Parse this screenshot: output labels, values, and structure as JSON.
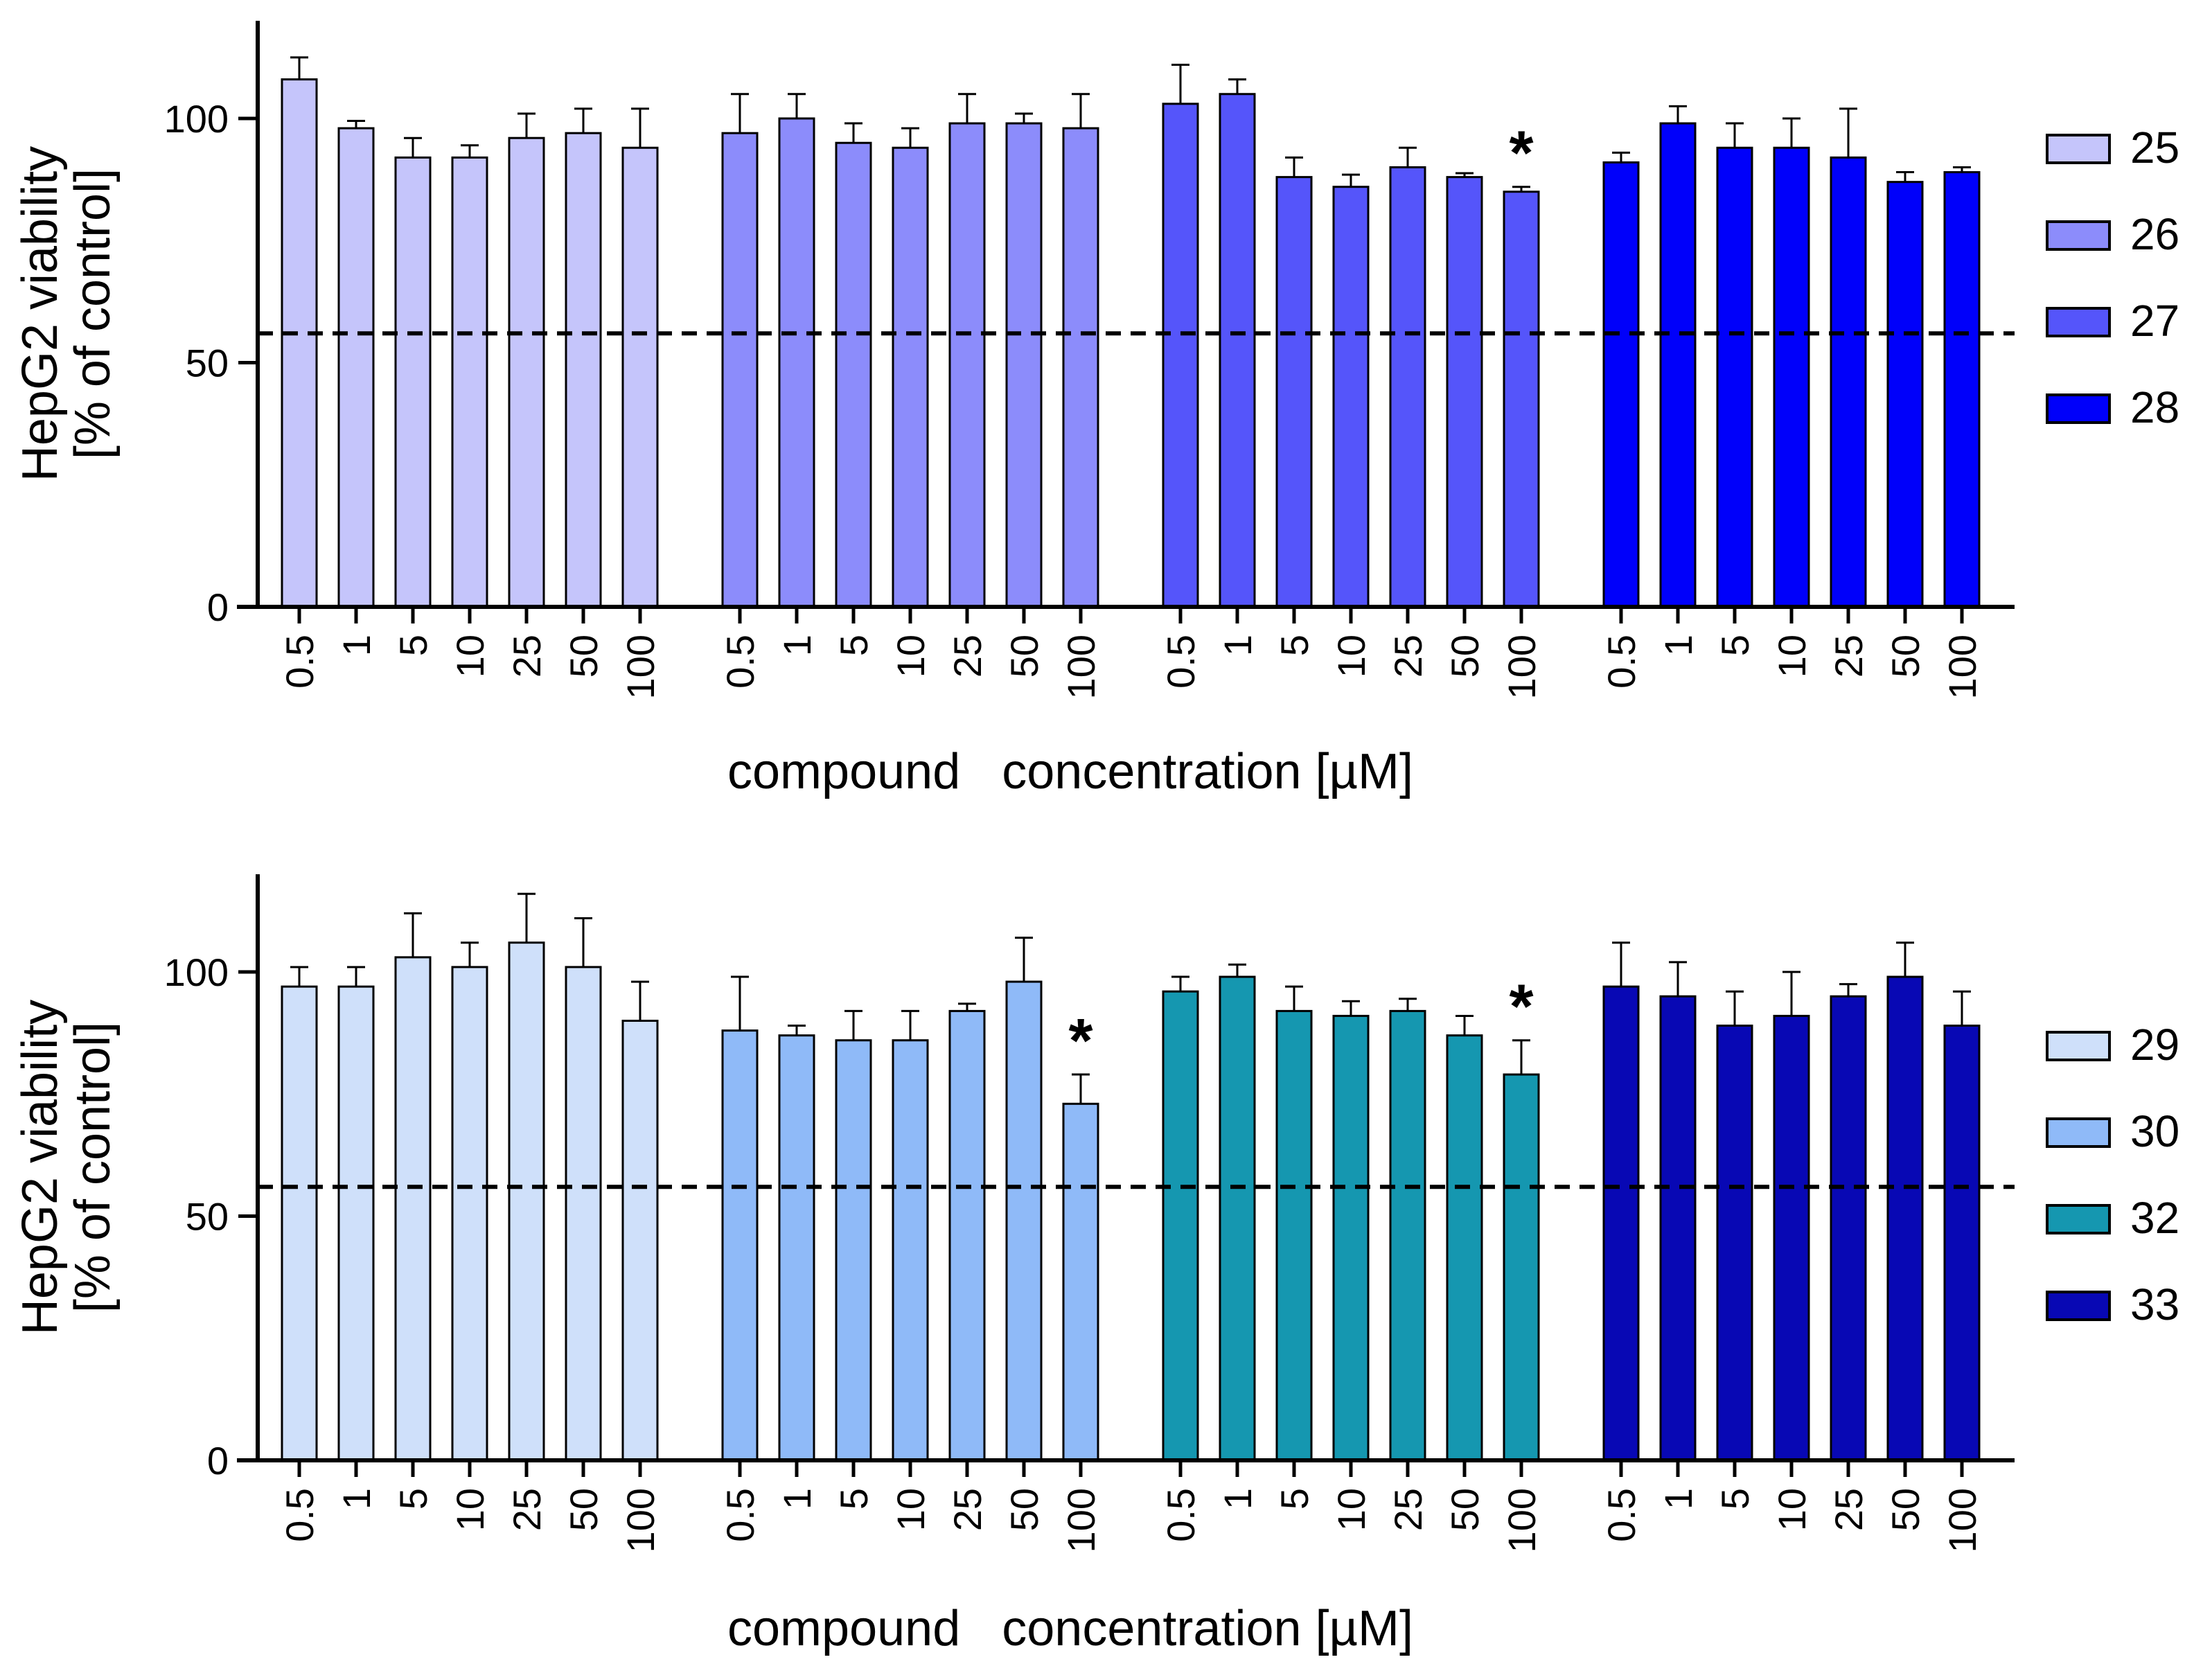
{
  "chart_data": [
    {
      "type": "bar",
      "ylabel": "HepG2 viability",
      "ylabel2": "[% of control]",
      "xlabel": "compound   concentration [µM]",
      "ylim": [
        0,
        120
      ],
      "yticks": [
        0,
        50,
        100
      ],
      "reference_line": 56,
      "categories": [
        "0.5",
        "1",
        "5",
        "10",
        "25",
        "50",
        "100"
      ],
      "series": [
        {
          "name": "25",
          "color": "#c5c5fb",
          "values": [
            108,
            98,
            92,
            92,
            96,
            97,
            94
          ],
          "errors": [
            4.5,
            1.5,
            4,
            2.5,
            5,
            5,
            8
          ],
          "sig": []
        },
        {
          "name": "26",
          "color": "#8c8cfb",
          "values": [
            97,
            100,
            95,
            94,
            99,
            99,
            98
          ],
          "errors": [
            8,
            5,
            4,
            4,
            6,
            2,
            7
          ],
          "sig": []
        },
        {
          "name": "27",
          "color": "#5555fa",
          "values": [
            103,
            105,
            88,
            86,
            90,
            88,
            85
          ],
          "errors": [
            8,
            3,
            4,
            2.5,
            4,
            0.8,
            1
          ],
          "sig": [
            "100"
          ]
        },
        {
          "name": "28",
          "color": "#0000fa",
          "values": [
            91,
            99,
            94,
            94,
            92,
            87,
            89
          ],
          "errors": [
            2,
            3.5,
            5,
            6,
            10,
            2,
            1
          ]
        }
      ]
    },
    {
      "type": "bar",
      "ylabel": "HepG2 viability",
      "ylabel2": "[% of control]",
      "xlabel": "compound   concentration [µM]",
      "ylim": [
        0,
        120
      ],
      "yticks": [
        0,
        50,
        100
      ],
      "reference_line": 56,
      "categories": [
        "0.5",
        "1",
        "5",
        "10",
        "25",
        "50",
        "100"
      ],
      "series": [
        {
          "name": "29",
          "color": "#cfe0fa",
          "values": [
            97,
            97,
            103,
            101,
            106,
            101,
            90
          ],
          "errors": [
            4,
            4,
            9,
            5,
            10,
            10,
            8
          ],
          "sig": []
        },
        {
          "name": "30",
          "color": "#8fbaf8",
          "values": [
            88,
            87,
            86,
            86,
            92,
            98,
            73
          ],
          "errors": [
            11,
            2,
            6,
            6,
            1.5,
            9,
            6
          ],
          "sig": [
            "100"
          ]
        },
        {
          "name": "32",
          "color": "#1597b0",
          "values": [
            96,
            99,
            92,
            91,
            92,
            87,
            79
          ],
          "errors": [
            3,
            2.5,
            5,
            3,
            2.5,
            4,
            7
          ],
          "sig": [
            "100"
          ]
        },
        {
          "name": "33",
          "color": "#0808b4",
          "values": [
            97,
            95,
            89,
            91,
            95,
            99,
            89
          ],
          "errors": [
            9,
            7,
            7,
            9,
            2.5,
            7,
            7
          ],
          "sig": []
        }
      ]
    }
  ]
}
